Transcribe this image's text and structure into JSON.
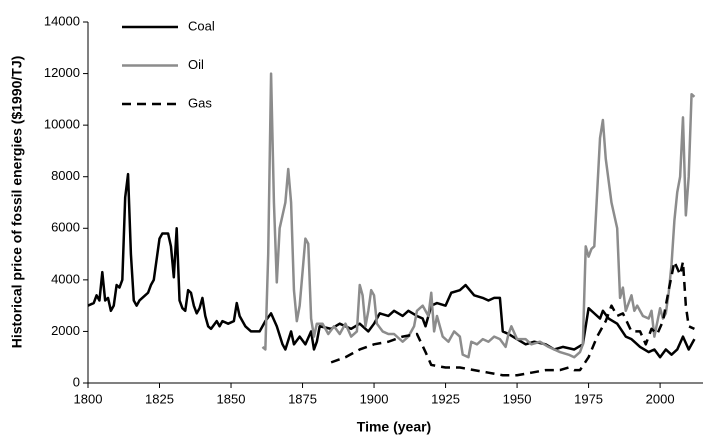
{
  "chart_data": {
    "type": "line",
    "x_label": "Time (year)",
    "y_label": "Historical price of fossil energies ($1990/TJ)",
    "xlim": [
      1800,
      2015
    ],
    "ylim": [
      0,
      14000
    ],
    "xticks": [
      1800,
      1825,
      1850,
      1875,
      1900,
      1925,
      1950,
      1975,
      2000
    ],
    "yticks": [
      0,
      2000,
      4000,
      6000,
      8000,
      10000,
      12000,
      14000
    ],
    "legend": "upper left",
    "series": [
      {
        "name": "Coal",
        "color": "#000000",
        "dash": "solid",
        "x": [
          1800,
          1802,
          1803,
          1804,
          1805,
          1806,
          1807,
          1808,
          1809,
          1810,
          1811,
          1812,
          1813,
          1814,
          1815,
          1816,
          1817,
          1818,
          1820,
          1821,
          1822,
          1823,
          1825,
          1826,
          1828,
          1829,
          1830,
          1831,
          1832,
          1833,
          1834,
          1835,
          1836,
          1837,
          1838,
          1839,
          1840,
          1841,
          1842,
          1843,
          1845,
          1846,
          1847,
          1849,
          1851,
          1852,
          1853,
          1855,
          1857,
          1860,
          1862,
          1864,
          1866,
          1868,
          1869,
          1871,
          1872,
          1874,
          1876,
          1878,
          1879,
          1880,
          1881,
          1885,
          1888,
          1890,
          1892,
          1895,
          1898,
          1900,
          1902,
          1905,
          1907,
          1910,
          1912,
          1915,
          1917,
          1918,
          1920,
          1922,
          1925,
          1927,
          1930,
          1932,
          1935,
          1938,
          1940,
          1942,
          1944,
          1945,
          1947,
          1950,
          1953,
          1956,
          1960,
          1963,
          1966,
          1970,
          1973,
          1975,
          1977,
          1979,
          1980,
          1982,
          1985,
          1988,
          1990,
          1993,
          1996,
          1998,
          2000,
          2002,
          2004,
          2006,
          2008,
          2010,
          2012
        ],
        "values": [
          3000,
          3100,
          3400,
          3200,
          4300,
          3200,
          3300,
          2800,
          3000,
          3800,
          3700,
          4000,
          7200,
          8100,
          5000,
          3200,
          3000,
          3200,
          3400,
          3500,
          3800,
          4000,
          5600,
          5800,
          5800,
          5300,
          4100,
          6000,
          3200,
          2900,
          2800,
          3600,
          3500,
          3000,
          2700,
          2900,
          3300,
          2600,
          2200,
          2100,
          2400,
          2200,
          2400,
          2300,
          2400,
          3100,
          2600,
          2200,
          2000,
          2000,
          2400,
          2700,
          2200,
          1500,
          1300,
          2000,
          1500,
          1800,
          1500,
          2000,
          1300,
          1600,
          2200,
          2100,
          2300,
          2200,
          2100,
          2300,
          2000,
          2300,
          2700,
          2600,
          2800,
          2600,
          2800,
          2600,
          2500,
          2200,
          3000,
          3100,
          3000,
          3500,
          3600,
          3800,
          3400,
          3300,
          3200,
          3300,
          3300,
          2000,
          1900,
          1700,
          1500,
          1600,
          1500,
          1300,
          1400,
          1300,
          1500,
          2900,
          2700,
          2500,
          2800,
          2500,
          2300,
          1800,
          1700,
          1400,
          1200,
          1300,
          1000,
          1300,
          1100,
          1300,
          1800,
          1300,
          1700
        ]
      },
      {
        "name": "Oil",
        "color": "#8c8c8c",
        "dash": "solid",
        "x": [
          1861,
          1862,
          1863,
          1864,
          1865,
          1866,
          1867,
          1868,
          1869,
          1870,
          1871,
          1872,
          1873,
          1874,
          1876,
          1877,
          1878,
          1879,
          1880,
          1882,
          1884,
          1886,
          1888,
          1890,
          1892,
          1894,
          1895,
          1896,
          1897,
          1898,
          1899,
          1900,
          1901,
          1903,
          1905,
          1907,
          1910,
          1912,
          1914,
          1915,
          1917,
          1919,
          1920,
          1921,
          1922,
          1924,
          1926,
          1928,
          1930,
          1931,
          1933,
          1934,
          1936,
          1938,
          1940,
          1942,
          1944,
          1946,
          1947,
          1948,
          1950,
          1953,
          1955,
          1958,
          1961,
          1965,
          1968,
          1970,
          1972,
          1973,
          1974,
          1975,
          1976,
          1977,
          1979,
          1980,
          1981,
          1983,
          1985,
          1986,
          1987,
          1988,
          1990,
          1991,
          1992,
          1994,
          1996,
          1997,
          1998,
          2000,
          2001,
          2002,
          2003,
          2004,
          2005,
          2006,
          2007,
          2008,
          2009,
          2010,
          2011,
          2012
        ],
        "values": [
          1400,
          1300,
          5000,
          12000,
          7000,
          3900,
          6000,
          6500,
          7000,
          8300,
          7000,
          3600,
          2400,
          3000,
          5600,
          5400,
          2500,
          1800,
          2300,
          2300,
          1900,
          2200,
          1900,
          2300,
          1800,
          2000,
          3800,
          3400,
          2200,
          2800,
          3600,
          3400,
          2300,
          2000,
          1900,
          1900,
          1600,
          1800,
          2200,
          2800,
          3000,
          2600,
          3500,
          2000,
          2600,
          1800,
          1600,
          2000,
          1800,
          1100,
          1000,
          1600,
          1500,
          1700,
          1600,
          1800,
          1700,
          1400,
          1900,
          2200,
          1700,
          1700,
          1500,
          1600,
          1400,
          1200,
          1100,
          1000,
          1200,
          1500,
          5300,
          4900,
          5200,
          5300,
          9500,
          10200,
          8700,
          7000,
          6000,
          3300,
          3700,
          2800,
          3400,
          2800,
          3000,
          2600,
          2500,
          2800,
          1800,
          2900,
          2500,
          2700,
          3500,
          4600,
          6300,
          7400,
          8000,
          10300,
          6500,
          8000,
          11200,
          11100
        ]
      },
      {
        "name": "Gas",
        "color": "#000000",
        "dash": "dashed",
        "x": [
          1885,
          1890,
          1895,
          1900,
          1905,
          1910,
          1915,
          1918,
          1920,
          1925,
          1930,
          1935,
          1940,
          1945,
          1950,
          1955,
          1960,
          1965,
          1968,
          1970,
          1972,
          1975,
          1978,
          1981,
          1983,
          1985,
          1987,
          1990,
          1993,
          1995,
          1997,
          1999,
          2001,
          2003,
          2005,
          2007,
          2008,
          2009,
          2010,
          2012
        ],
        "values": [
          800,
          1000,
          1300,
          1500,
          1600,
          1800,
          1900,
          1200,
          700,
          600,
          600,
          500,
          400,
          300,
          300,
          400,
          500,
          500,
          600,
          500,
          500,
          1000,
          1800,
          2400,
          3000,
          2600,
          2700,
          2000,
          2000,
          1500,
          2100,
          1900,
          2400,
          3600,
          4700,
          4200,
          4700,
          3000,
          2200,
          2100
        ]
      }
    ]
  }
}
